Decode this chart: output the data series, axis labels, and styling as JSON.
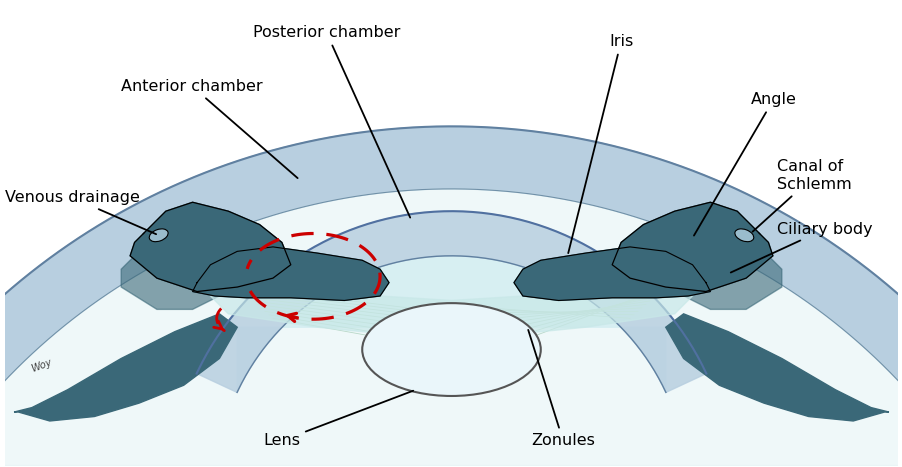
{
  "labels": {
    "posterior_chamber": "Posterior chamber",
    "anterior_chamber": "Anterior chamber",
    "iris": "Iris",
    "angle": "Angle",
    "canal_of_schlemm": "Canal of\nSchlemm",
    "ciliary_body": "Ciliary body",
    "venous_drainage": "Venous drainage",
    "lens": "Lens",
    "zonules": "Zonules"
  },
  "colors": {
    "sclera_outer": "#b8cfe0",
    "sclera_mid": "#c8dce8",
    "aqueous_chamber": "#d8eef0",
    "cornea_ring": "#b0ccd8",
    "iris_dark": "#3a6878",
    "ciliary_dark": "#3a6878",
    "lens_fill": "#e8f4f8",
    "lens_outline": "#666666",
    "flow_arrow": "#cc0000",
    "line_color": "#000000",
    "zonule_color": "#b8d8c8",
    "schlemm_fill": "#a0bece",
    "background": "#ffffff",
    "trabecular": "#c0d8d0"
  },
  "figsize": [
    9.03,
    4.67
  ],
  "dpi": 100
}
